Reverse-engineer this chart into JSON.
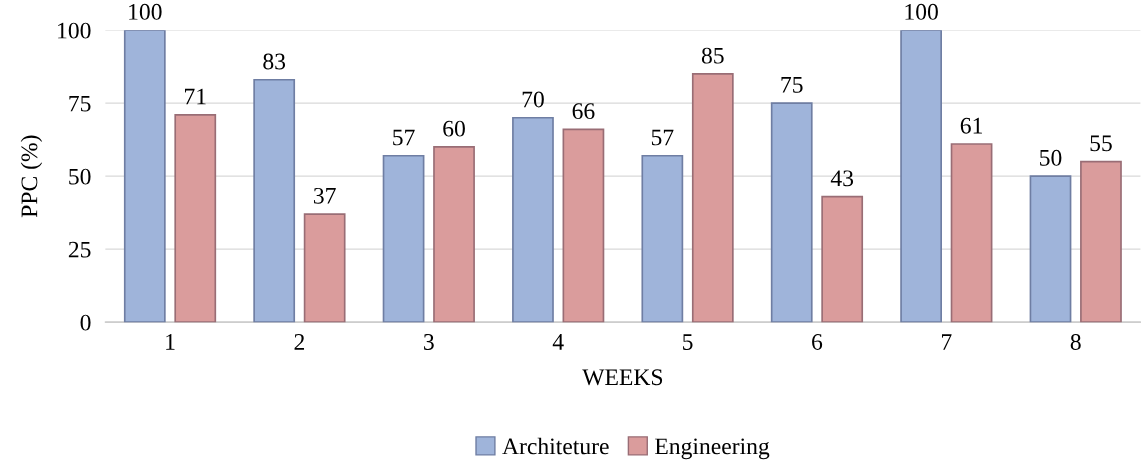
{
  "chart_data": {
    "type": "bar",
    "xlabel": "WEEKS",
    "ylabel": "PPC (%)",
    "categories": [
      "1",
      "2",
      "3",
      "4",
      "5",
      "6",
      "7",
      "8"
    ],
    "series": [
      {
        "name": "Architeture",
        "color": "#9fb4da",
        "values": [
          100,
          83,
          57,
          70,
          57,
          75,
          100,
          50
        ]
      },
      {
        "name": "Engineering",
        "color": "#da9c9c",
        "values": [
          71,
          37,
          60,
          66,
          85,
          43,
          61,
          55
        ]
      }
    ],
    "ylim": [
      0,
      100
    ],
    "yticks": [
      0,
      25,
      50,
      75,
      100
    ],
    "grid": "y",
    "legend": "bottom",
    "data_labels": true
  }
}
